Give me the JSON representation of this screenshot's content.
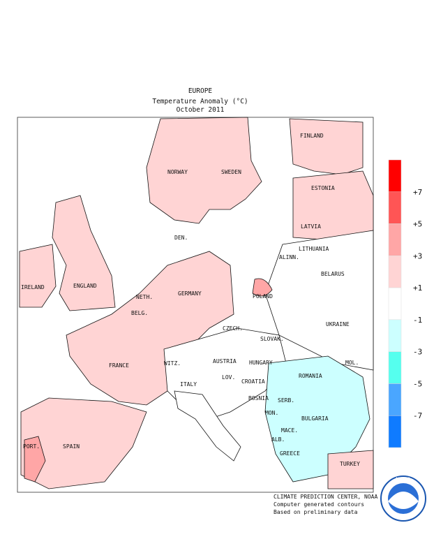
{
  "header": {
    "region": "EUROPE",
    "title": "Temperature Anomaly (°C)",
    "period": "October 2011"
  },
  "labels": [
    "FINLAND",
    "NORWAY",
    "SWEDEN",
    "ESTONIA",
    "LATVIA",
    "DEN.",
    "LITHUANIA",
    "ALINN.",
    "IRELAND",
    "ENGLAND",
    "BELARUS",
    "POLAND",
    "NETH.",
    "GERMANY",
    "BELG.",
    "UKRAINE",
    "CZECH.",
    "SLOVAK.",
    "FRANCE",
    "WITZ.",
    "AUSTRIA",
    "HUNGARY",
    "MOL.",
    "ROMANIA",
    "LOV.",
    "CROATIA",
    "ITALY",
    "BOSNIA",
    "SERB.",
    "BULGARIA",
    "MON.",
    "MACE.",
    "ALB.",
    "GREECE",
    "PORT.",
    "SPAIN",
    "TURKEY"
  ],
  "colorbar": {
    "colors": [
      "#ff0000",
      "#ff5555",
      "#ffa6a6",
      "#ffd4d4",
      "#ffffff",
      "#ccffff",
      "#55ffee",
      "#4aa6ff",
      "#0f7bff"
    ],
    "ticks": [
      {
        "value": 7,
        "label": "+7"
      },
      {
        "value": 5,
        "label": "+5"
      },
      {
        "value": 3,
        "label": "+3"
      },
      {
        "value": 1,
        "label": "+1"
      },
      -1,
      -3,
      -5,
      -7
    ]
  },
  "footer": [
    "CLIMATE PREDICTION CENTER, NOAA",
    "Computer generated contours",
    "Based on preliminary data"
  ],
  "logo": "NOAA"
}
